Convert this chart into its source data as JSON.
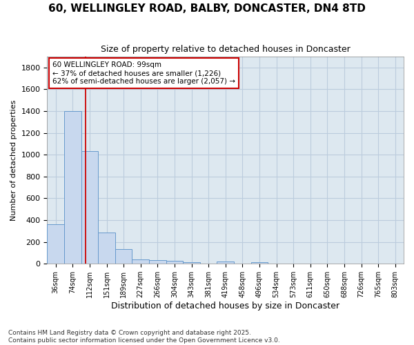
{
  "title_line1": "60, WELLINGLEY ROAD, BALBY, DONCASTER, DN4 8TD",
  "title_line2": "Size of property relative to detached houses in Doncaster",
  "xlabel": "Distribution of detached houses by size in Doncaster",
  "ylabel": "Number of detached properties",
  "categories": [
    "36sqm",
    "74sqm",
    "112sqm",
    "151sqm",
    "189sqm",
    "227sqm",
    "266sqm",
    "304sqm",
    "343sqm",
    "381sqm",
    "419sqm",
    "458sqm",
    "496sqm",
    "534sqm",
    "573sqm",
    "611sqm",
    "650sqm",
    "688sqm",
    "726sqm",
    "765sqm",
    "803sqm"
  ],
  "values": [
    360,
    1400,
    1030,
    285,
    135,
    42,
    35,
    25,
    15,
    0,
    20,
    0,
    15,
    0,
    0,
    0,
    0,
    0,
    0,
    0,
    0
  ],
  "bar_color": "#c8d8ee",
  "bar_edge_color": "#6699cc",
  "red_line_x": 1.75,
  "annotation_title": "60 WELLINGLEY ROAD: 99sqm",
  "annotation_line2": "← 37% of detached houses are smaller (1,226)",
  "annotation_line3": "62% of semi-detached houses are larger (2,057) →",
  "annotation_box_facecolor": "#ffffff",
  "annotation_box_edgecolor": "#cc0000",
  "ylim": [
    0,
    1900
  ],
  "yticks": [
    0,
    200,
    400,
    600,
    800,
    1000,
    1200,
    1400,
    1600,
    1800
  ],
  "grid_color": "#bbccdd",
  "background_color": "#dde8f0",
  "footer_line1": "Contains HM Land Registry data © Crown copyright and database right 2025.",
  "footer_line2": "Contains public sector information licensed under the Open Government Licence v3.0."
}
